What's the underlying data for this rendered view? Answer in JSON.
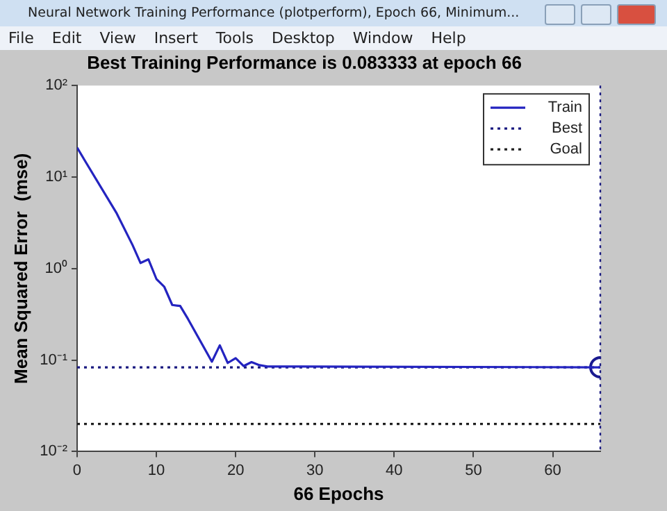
{
  "chart_data": {
    "type": "line",
    "title": "Best Training Performance is 0.083333 at epoch 66",
    "xlabel": "66 Epochs",
    "ylabel": "Mean Squared Error  (mse)",
    "annotations": [
      "Neural Network Training Performance (plotperform), Epoch 66, Minimum...",
      "File",
      "Edit",
      "View",
      "Insert",
      "Tools",
      "Desktop",
      "Window",
      "Help"
    ],
    "log": "y",
    "grid": false,
    "legend": "top right",
    "xlim": [
      0,
      66
    ],
    "xticks": [
      0,
      10,
      20,
      30,
      40,
      50,
      60
    ],
    "ylim": [
      0.01,
      100
    ],
    "yticks": [
      {
        "value": 0.01,
        "label": "10⁻²"
      },
      {
        "value": 0.1,
        "label": "10⁻¹"
      },
      {
        "value": 1,
        "label": "10⁰"
      },
      {
        "value": 10,
        "label": "10¹"
      },
      {
        "value": 100,
        "label": "10²"
      }
    ],
    "ref_lines": [
      {
        "axis": "x",
        "value": 66,
        "label": null,
        "color": "#1a1a80",
        "line_style": "dotted"
      }
    ],
    "series": [
      {
        "name": "Train",
        "color": "#2424c0",
        "line_style": "solid",
        "marker": "none",
        "x": [
          0,
          1,
          5,
          7,
          8,
          9,
          10,
          11,
          12,
          13,
          14,
          17,
          18,
          19,
          20,
          21,
          22,
          23,
          24,
          28,
          66
        ],
        "values": [
          21,
          15,
          4,
          1.8,
          1.15,
          1.26,
          0.77,
          0.63,
          0.4,
          0.39,
          0.28,
          0.096,
          0.145,
          0.093,
          0.105,
          0.086,
          0.095,
          0.088,
          0.085,
          0.085,
          0.083333
        ]
      },
      {
        "name": "Best",
        "type": "line",
        "color": "#1a1a80",
        "line_style": "dotted",
        "marker": "none",
        "x": [
          0,
          66
        ],
        "values": [
          0.083333,
          0.083333
        ]
      },
      {
        "name": "Goal",
        "type": "line",
        "color": "#202020",
        "line_style": "dotted",
        "marker": "none",
        "x": [
          0,
          66
        ],
        "values": [
          0.02,
          0.02
        ]
      },
      {
        "type": "scatter",
        "color": "#1a1a90",
        "marker": "circle",
        "x": [
          66
        ],
        "values": [
          0.083333
        ]
      }
    ]
  }
}
